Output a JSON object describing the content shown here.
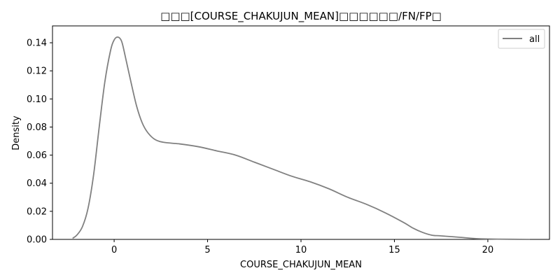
{
  "chart_data": {
    "type": "line",
    "title": "□□□[COURSE_CHAKUJUN_MEAN]□□□□□□/FN/FP□",
    "xlabel": "COURSE_CHAKUJUN_MEAN",
    "ylabel": "Density",
    "xlim": [
      -3.3,
      23.3
    ],
    "ylim": [
      0,
      0.152
    ],
    "xticks": [
      0,
      5,
      10,
      15,
      20
    ],
    "yticks": [
      0.0,
      0.02,
      0.04,
      0.06,
      0.08,
      0.1,
      0.12,
      0.14
    ],
    "grid": false,
    "legend_position": "top-right",
    "line_color": "#808080",
    "series": [
      {
        "name": "all",
        "x": [
          -2.2,
          -2.0,
          -1.7,
          -1.4,
          -1.1,
          -0.8,
          -0.5,
          -0.2,
          0.0,
          0.2,
          0.4,
          0.6,
          0.9,
          1.2,
          1.5,
          1.8,
          2.2,
          2.7,
          3.5,
          4.5,
          5.5,
          6.5,
          7.5,
          8.5,
          9.5,
          10.5,
          11.5,
          12.5,
          13.5,
          14.5,
          15.5,
          16.0,
          16.5,
          17.0,
          17.5,
          18.5,
          19.5,
          20.5,
          22.2
        ],
        "y": [
          0.001,
          0.003,
          0.009,
          0.022,
          0.046,
          0.08,
          0.112,
          0.134,
          0.142,
          0.144,
          0.141,
          0.13,
          0.112,
          0.095,
          0.083,
          0.076,
          0.071,
          0.069,
          0.068,
          0.066,
          0.063,
          0.06,
          0.055,
          0.05,
          0.045,
          0.041,
          0.036,
          0.03,
          0.025,
          0.019,
          0.012,
          0.008,
          0.005,
          0.003,
          0.0025,
          0.0015,
          0.0005,
          0.0002,
          0.0
        ]
      }
    ]
  }
}
